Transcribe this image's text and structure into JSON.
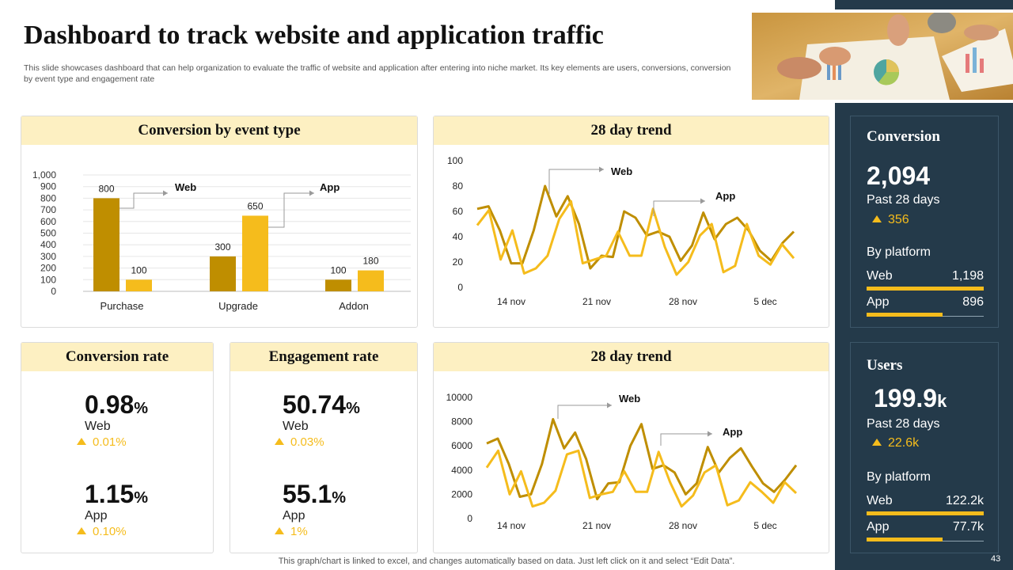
{
  "header": {
    "title": "Dashboard to track website and application traffic",
    "subtitle": "This slide showcases dashboard that can help organization to evaluate the traffic of website and application after entering into niche market. Its key elements are users, conversions, conversion by event type and engagement rate"
  },
  "colors": {
    "dark_gold": "#bf8e00",
    "gold": "#f5bc1c",
    "navy": "#243a4a",
    "header_bg": "#fdf0c2"
  },
  "cards": {
    "conversion_by_event": "Conversion  by event type",
    "trend1": "28 day trend",
    "trend2": "28 day trend",
    "conversion_rate": "Conversion  rate",
    "engagement_rate": "Engagement rate"
  },
  "chart_data": [
    {
      "id": "conversion-by-event",
      "type": "bar",
      "title": "Conversion  by event type",
      "categories": [
        "Purchase",
        "Upgrade",
        "Addon"
      ],
      "series": [
        {
          "name": "Web",
          "values": [
            800,
            300,
            100
          ],
          "color": "#bf8e00"
        },
        {
          "name": "App",
          "values": [
            100,
            650,
            180
          ],
          "color": "#f5bc1c"
        }
      ],
      "yticks": [
        "0",
        "100",
        "200",
        "300",
        "400",
        "500",
        "600",
        "700",
        "800",
        "900",
        "1,000"
      ],
      "ylim": [
        0,
        1000
      ],
      "annotations": [
        "Web",
        "App"
      ]
    },
    {
      "id": "trend-1",
      "type": "line",
      "title": "28 day trend",
      "x_ticks": [
        "14 nov",
        "21 nov",
        "28 nov",
        "5 dec"
      ],
      "yticks": [
        "0",
        "20",
        "40",
        "60",
        "80",
        "100"
      ],
      "ylim": [
        0,
        100
      ],
      "series": [
        {
          "name": "Web",
          "color": "#bf8e00",
          "values": [
            62,
            64,
            45,
            19,
            19,
            45,
            80,
            56,
            72,
            50,
            15,
            25,
            24,
            60,
            55,
            41,
            44,
            40,
            21,
            33,
            59,
            38,
            50,
            55,
            45,
            29,
            21,
            35,
            44
          ]
        },
        {
          "name": "App",
          "color": "#f5bc1c",
          "values": [
            49,
            61,
            22,
            45,
            11,
            15,
            25,
            54,
            68,
            19,
            22,
            25,
            44,
            25,
            25,
            62,
            32,
            10,
            20,
            41,
            50,
            12,
            17,
            50,
            25,
            18,
            34,
            23
          ]
        }
      ],
      "annotations": [
        "Web",
        "App"
      ]
    },
    {
      "id": "trend-2",
      "type": "line",
      "title": "28 day trend",
      "x_ticks": [
        "14 nov",
        "21 nov",
        "28 nov",
        "5 dec"
      ],
      "yticks": [
        "0",
        "2000",
        "4000",
        "6000",
        "8000",
        "10000"
      ],
      "ylim": [
        0,
        10000
      ],
      "series": [
        {
          "name": "Web",
          "color": "#bf8e00",
          "values": [
            6200,
            6600,
            4500,
            1800,
            2000,
            4500,
            8200,
            5800,
            7100,
            4900,
            1600,
            2900,
            3000,
            6000,
            7800,
            4100,
            4400,
            3800,
            2000,
            2900,
            5900,
            3800,
            5000,
            5800,
            4300,
            2900,
            2200,
            3200,
            4400
          ]
        },
        {
          "name": "App",
          "color": "#f5bc1c",
          "values": [
            4200,
            5600,
            2000,
            3900,
            1000,
            1300,
            2300,
            5300,
            5600,
            1700,
            2000,
            2200,
            3900,
            2200,
            2200,
            5500,
            3000,
            1000,
            1900,
            3800,
            4400,
            1100,
            1500,
            3000,
            2200,
            1300,
            3000,
            2100
          ]
        }
      ],
      "annotations": [
        "Web",
        "App"
      ]
    }
  ],
  "conversion_rate": {
    "web": {
      "value": "0.98",
      "unit": "%",
      "label": "Web",
      "delta": "0.01%"
    },
    "app": {
      "value": "1.15",
      "unit": "%",
      "label": "App",
      "delta": "0.10%"
    }
  },
  "engagement_rate": {
    "web": {
      "value": "50.74",
      "unit": "%",
      "label": "Web",
      "delta": "0.03%"
    },
    "app": {
      "value": "55.1",
      "unit": "%",
      "label": "App",
      "delta": "1%"
    }
  },
  "sidebar": {
    "conversion": {
      "title": "Conversion",
      "value": "2,094",
      "period": "Past 28 days",
      "delta": "356",
      "by_platform": "By platform",
      "web": {
        "label": "Web",
        "value": "1,198",
        "share": 1.0
      },
      "app": {
        "label": "App",
        "value": "896",
        "share": 0.65
      }
    },
    "users": {
      "title": "Users",
      "value": "199.9",
      "unit": "k",
      "period": "Past 28 days",
      "delta": "22.6k",
      "by_platform": "By platform",
      "web": {
        "label": "Web",
        "value": "122.2k",
        "share": 1.0
      },
      "app": {
        "label": "App",
        "value": "77.7k",
        "share": 0.65
      }
    }
  },
  "footer": {
    "note": "This graph/chart is linked to excel,  and changes automatically based on data. Just left click on it and select “Edit Data”.",
    "page": "43"
  }
}
